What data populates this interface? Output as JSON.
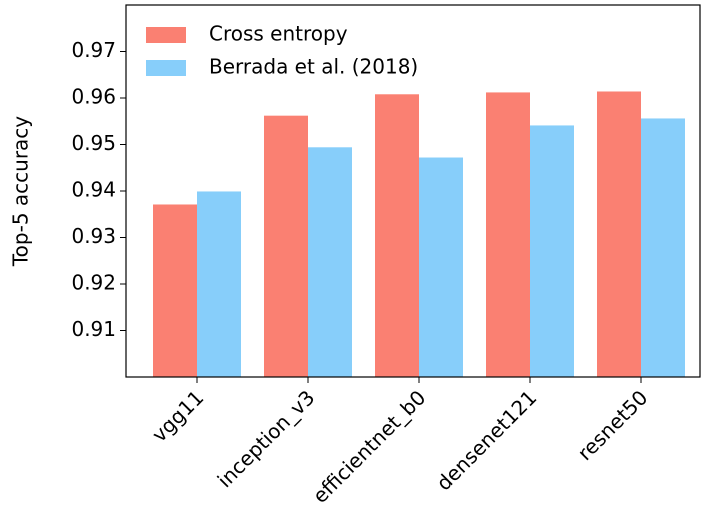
{
  "chart_data": {
    "type": "bar",
    "ylabel": "Top-5 accuracy",
    "categories": [
      "vgg11",
      "inception_v3",
      "efficientnet_b0",
      "densenet121",
      "resnet50"
    ],
    "series": [
      {
        "name": "Cross entropy",
        "color": "#fa8072",
        "values": [
          0.9371,
          0.9562,
          0.9608,
          0.9612,
          0.9614
        ]
      },
      {
        "name": "Berrada et al. (2018)",
        "color": "#87cefa",
        "values": [
          0.9399,
          0.9494,
          0.9472,
          0.9541,
          0.9556
        ]
      }
    ],
    "ylim": [
      0.9,
      0.98
    ],
    "yticks": [
      0.91,
      0.92,
      0.93,
      0.94,
      0.95,
      0.96,
      0.97
    ],
    "legend": "upper left"
  }
}
